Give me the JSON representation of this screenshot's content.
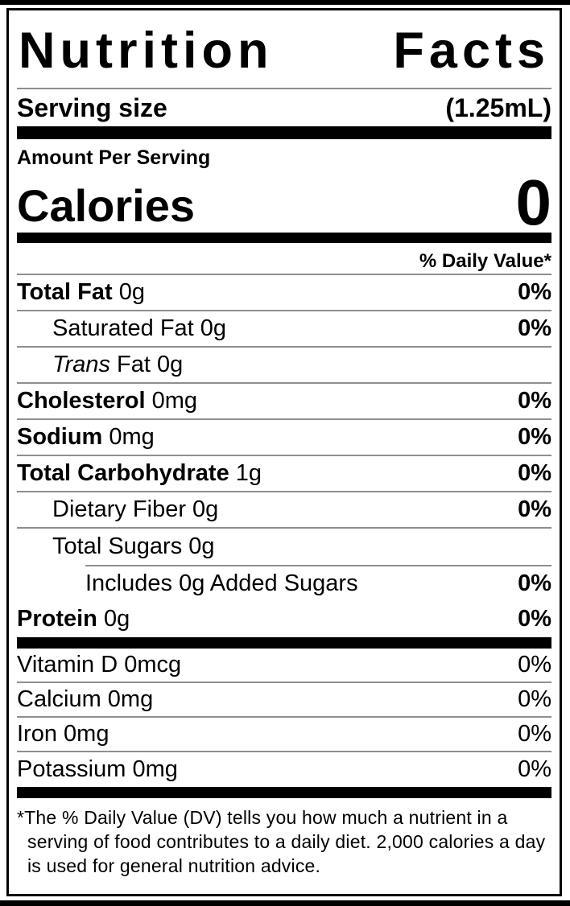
{
  "label": {
    "title_left": "Nutrition",
    "title_right": "Facts",
    "serving": {
      "label": "Serving size",
      "value": "(1.25mL)"
    },
    "amount_per_serving": "Amount Per Serving",
    "calories": {
      "label": "Calories",
      "value": "0"
    },
    "daily_value_header": "% Daily Value*",
    "nutrients": [
      {
        "bold": "Total Fat",
        "italic": "",
        "rest": " 0g",
        "dv": "0%"
      },
      {
        "bold": "",
        "italic": "",
        "rest": "Saturated Fat 0g",
        "dv": "0%"
      },
      {
        "bold": "",
        "italic": "Trans",
        "rest": " Fat 0g",
        "dv": ""
      },
      {
        "bold": "Cholesterol",
        "italic": "",
        "rest": " 0mg",
        "dv": "0%"
      },
      {
        "bold": "Sodium",
        "italic": "",
        "rest": " 0mg",
        "dv": "0%"
      },
      {
        "bold": "Total Carbohydrate",
        "italic": "",
        "rest": " 1g",
        "dv": "0%"
      },
      {
        "bold": "",
        "italic": "",
        "rest": "Dietary Fiber 0g",
        "dv": "0%"
      },
      {
        "bold": "",
        "italic": "",
        "rest": "Total Sugars 0g",
        "dv": ""
      },
      {
        "bold": "",
        "italic": "",
        "rest": "Includes 0g Added Sugars",
        "dv": "0%"
      },
      {
        "bold": "Protein",
        "italic": "",
        "rest": " 0g",
        "dv": "0%"
      }
    ],
    "vitamins": [
      {
        "name": "Vitamin D 0mcg",
        "dv": "0%"
      },
      {
        "name": "Calcium 0mg",
        "dv": "0%"
      },
      {
        "name": "Iron 0mg",
        "dv": "0%"
      },
      {
        "name": "Potassium 0mg",
        "dv": "0%"
      }
    ],
    "footnote": "*The % Daily Value (DV) tells you how much a nutrient in a serving of food contributes to a daily diet. 2,000 calories a day is used for general nutrition advice.",
    "colors": {
      "ink": "#000000",
      "hairline": "#8e8e8e",
      "background": "#ffffff"
    }
  }
}
